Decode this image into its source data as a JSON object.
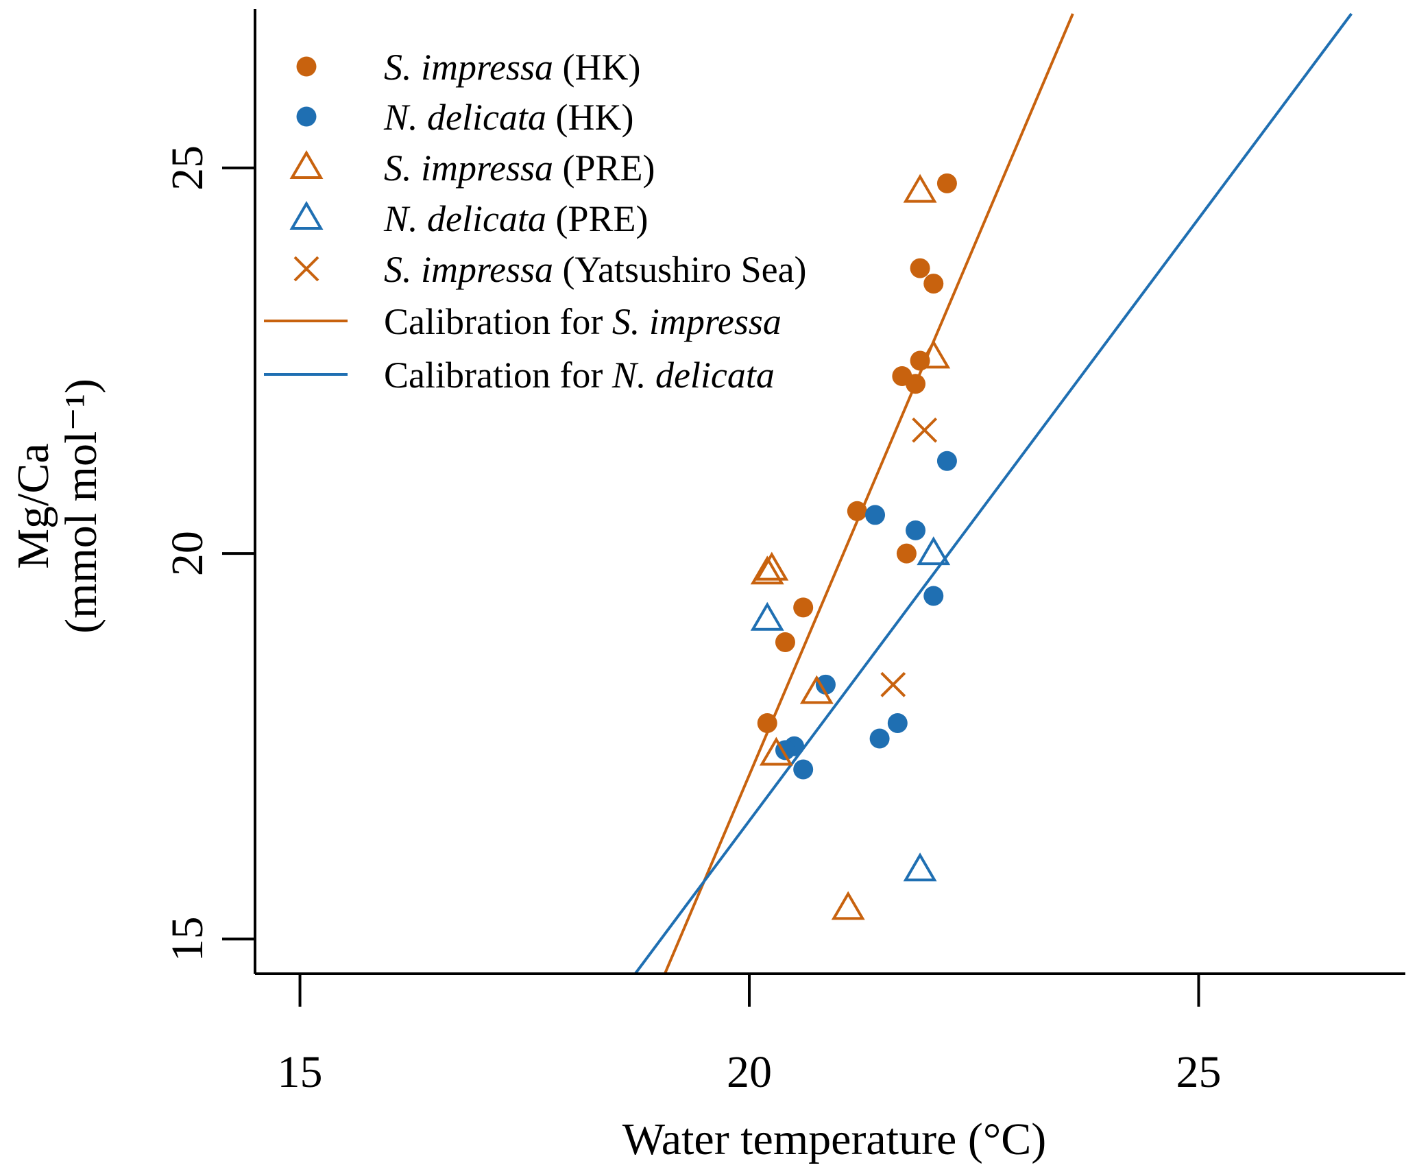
{
  "chart_data": {
    "type": "scatter",
    "xlabel": "Water temperature (°C)",
    "ylabel_line1": "Mg/Ca",
    "ylabel_line2": "(mmol mol⁻¹)",
    "xlim": [
      14.5,
      27.3
    ],
    "ylim": [
      14.55,
      27.0
    ],
    "xticks": [
      15,
      20,
      25
    ],
    "xtick_labels": [
      "15",
      "20",
      "25"
    ],
    "yticks": [
      15,
      20,
      25
    ],
    "ytick_labels": [
      "15",
      "20",
      "25"
    ],
    "grid": false,
    "legend_position": "top-left",
    "colors": {
      "orange": "#c8620e",
      "blue": "#1f6fb2"
    },
    "series": [
      {
        "name_italic": "S. impressa",
        "name_rest": " (HK)",
        "marker": "filled-circle",
        "color": "#c8620e",
        "points": [
          [
            22.2,
            24.8
          ],
          [
            21.9,
            23.7
          ],
          [
            22.05,
            23.5
          ],
          [
            21.9,
            22.5
          ],
          [
            21.7,
            22.3
          ],
          [
            21.85,
            22.2
          ],
          [
            21.2,
            20.55
          ],
          [
            21.75,
            20.0
          ],
          [
            20.6,
            19.3
          ],
          [
            20.4,
            18.85
          ],
          [
            20.2,
            17.8
          ]
        ]
      },
      {
        "name_italic": "N. delicata",
        "name_rest": " (HK)",
        "marker": "filled-circle",
        "color": "#1f6fb2",
        "points": [
          [
            22.2,
            21.2
          ],
          [
            21.4,
            20.5
          ],
          [
            21.85,
            20.3
          ],
          [
            22.05,
            19.45
          ],
          [
            20.85,
            18.3
          ],
          [
            21.65,
            17.8
          ],
          [
            21.45,
            17.6
          ],
          [
            20.5,
            17.5
          ],
          [
            20.4,
            17.45
          ],
          [
            20.6,
            17.2
          ]
        ]
      },
      {
        "name_italic": "S. impressa",
        "name_rest": " (PRE)",
        "marker": "open-triangle",
        "color": "#c8620e",
        "points": [
          [
            21.9,
            24.7
          ],
          [
            22.05,
            22.55
          ],
          [
            20.25,
            19.8
          ],
          [
            20.2,
            19.75
          ],
          [
            20.75,
            18.2
          ],
          [
            20.3,
            17.4
          ],
          [
            21.1,
            15.4
          ]
        ]
      },
      {
        "name_italic": "N. delicata",
        "name_rest": " (PRE)",
        "marker": "open-triangle",
        "color": "#1f6fb2",
        "points": [
          [
            22.05,
            20.0
          ],
          [
            20.2,
            19.15
          ],
          [
            21.9,
            15.9
          ]
        ]
      },
      {
        "name_italic": "S. impressa",
        "name_rest": " (Yatsushiro Sea)",
        "marker": "cross",
        "color": "#c8620e",
        "points": [
          [
            21.95,
            21.6
          ],
          [
            21.6,
            18.3
          ]
        ]
      }
    ],
    "lines": [
      {
        "name_prefix": "Calibration for ",
        "name_italic": "S. impressa",
        "color": "#c8620e",
        "from": [
          19.06,
          14.55
        ],
        "to": [
          23.6,
          27.0
        ]
      },
      {
        "name_prefix": "Calibration for ",
        "name_italic": "N. delicata",
        "color": "#1f6fb2",
        "from": [
          18.73,
          14.55
        ],
        "to": [
          26.7,
          27.0
        ]
      }
    ]
  }
}
